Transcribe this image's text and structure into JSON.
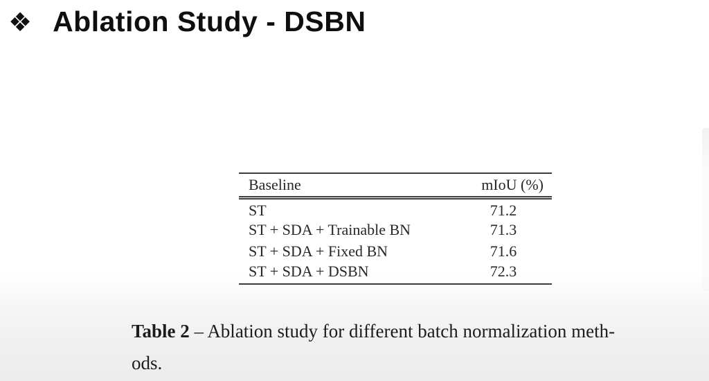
{
  "slide": {
    "bullet_icon": "❖",
    "title": "Ablation Study - DSBN"
  },
  "table": {
    "headers": {
      "baseline": "Baseline",
      "miou": "mIoU (%)"
    },
    "rows": [
      {
        "baseline": "ST",
        "miou": "71.2"
      },
      {
        "baseline": "ST + SDA + Trainable BN",
        "miou": "71.3"
      },
      {
        "baseline": "ST + SDA + Fixed BN",
        "miou": "71.6"
      },
      {
        "baseline": "ST + SDA + DSBN",
        "miou": "72.3"
      }
    ]
  },
  "caption": {
    "label": "Table 2",
    "dash": "–",
    "text_line1": "Ablation study for different batch normalization meth-",
    "text_line2": "ods."
  },
  "colors": {
    "title_text": "#0f0f0f",
    "table_text": "#272727",
    "table_rule": "#3c3c3c",
    "caption_text": "#1c1c1c",
    "background_top": "#ffffff",
    "background_bottom": "#ececec"
  }
}
